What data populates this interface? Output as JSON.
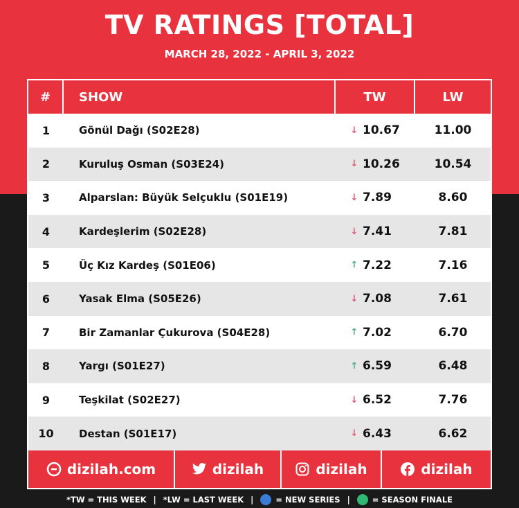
{
  "header": {
    "title": "TV RATINGS [TOTAL]",
    "subtitle": "MARCH 28, 2022 - APRIL 3, 2022"
  },
  "table": {
    "columns": {
      "rank": "#",
      "show": "SHOW",
      "tw": "TW",
      "lw": "LW"
    },
    "rows": [
      {
        "rank": "1",
        "show": "Gönül Dağı (S02E28)",
        "trend": "down",
        "tw": "10.67",
        "lw": "11.00"
      },
      {
        "rank": "2",
        "show": "Kuruluş Osman (S03E24)",
        "trend": "down",
        "tw": "10.26",
        "lw": "10.54"
      },
      {
        "rank": "3",
        "show": "Alparslan: Büyük Selçuklu (S01E19)",
        "trend": "down",
        "tw": "7.89",
        "lw": "8.60"
      },
      {
        "rank": "4",
        "show": "Kardeşlerim (S02E28)",
        "trend": "down",
        "tw": "7.41",
        "lw": "7.81"
      },
      {
        "rank": "5",
        "show": "Üç Kız Kardeş (S01E06)",
        "trend": "up",
        "tw": "7.22",
        "lw": "7.16"
      },
      {
        "rank": "6",
        "show": "Yasak Elma (S05E26)",
        "trend": "down",
        "tw": "7.08",
        "lw": "7.61"
      },
      {
        "rank": "7",
        "show": "Bir Zamanlar Çukurova (S04E28)",
        "trend": "up",
        "tw": "7.02",
        "lw": "6.70"
      },
      {
        "rank": "8",
        "show": "Yargı (S01E27)",
        "trend": "up",
        "tw": "6.59",
        "lw": "6.48"
      },
      {
        "rank": "9",
        "show": "Teşkilat (S02E27)",
        "trend": "down",
        "tw": "6.52",
        "lw": "7.76"
      },
      {
        "rank": "10",
        "show": "Destan (S01E17)",
        "trend": "down",
        "tw": "6.43",
        "lw": "6.62"
      }
    ]
  },
  "social": {
    "website": "dizilah.com",
    "twitter": "dizilah",
    "instagram": "dizilah",
    "facebook": "dizilah"
  },
  "footer": {
    "tw_note": "*TW = THIS WEEK",
    "lw_note": "*LW = LAST WEEK",
    "new_series": "= NEW SERIES",
    "season_finale": "= SEASON FINALE"
  },
  "colors": {
    "brand_red": "#e8323e",
    "dark": "#1a1a1a",
    "trend_down": "#e05a78",
    "trend_up": "#4caf82"
  }
}
